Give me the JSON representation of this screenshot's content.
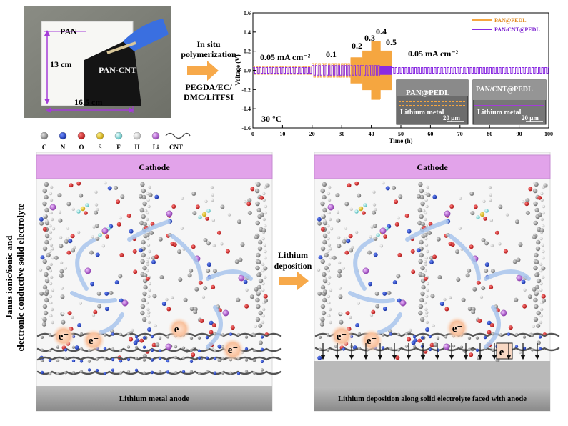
{
  "photo": {
    "pan": "PAN",
    "pan_cnt": "PAN-CNT",
    "height": "13 cm",
    "width": "16.5 cm"
  },
  "process": {
    "line1": "In situ",
    "line2": "polymerization",
    "r1": "PEGDA/EC/",
    "r2": "DMC/LiTFSI"
  },
  "chart_data": {
    "type": "line",
    "xlabel": "Time (h)",
    "ylabel": "Voltage (V)",
    "xlim": [
      0,
      100
    ],
    "ylim": [
      -0.6,
      0.6
    ],
    "x_ticks": [
      "0",
      "10",
      "20",
      "30",
      "40",
      "50",
      "60",
      "70",
      "80",
      "90",
      "100"
    ],
    "y_ticks": [
      "0.6",
      "0.4",
      "0.2",
      "0.0",
      "-0.2",
      "-0.4",
      "-0.6"
    ],
    "legend": [
      "PAN@PEDL",
      "PAN/CNT@PEDL"
    ],
    "series_colors": [
      "#f5a640",
      "#8a2be2"
    ],
    "annotations": {
      "d1": "0.05 mA cm⁻²",
      "d2": "0.1",
      "d3": "0.2",
      "d4": "0.3",
      "d5": "0.4",
      "d6": "0.5",
      "d7": "0.05 mA cm⁻²",
      "temp": "30 °C"
    },
    "segments": [
      {
        "current": 0.05,
        "x": [
          0,
          20
        ],
        "amp_pan": 0.04,
        "amp_cnt": 0.03
      },
      {
        "current": 0.1,
        "x": [
          20,
          33
        ],
        "amp_pan": 0.07,
        "amp_cnt": 0.05
      },
      {
        "current": 0.2,
        "x": [
          33,
          37
        ],
        "amp_pan": 0.13,
        "amp_cnt": 0.05
      },
      {
        "current": 0.3,
        "x": [
          37,
          40
        ],
        "amp_pan": 0.2,
        "amp_cnt": 0.05
      },
      {
        "current": 0.4,
        "x": [
          40,
          43
        ],
        "amp_pan": 0.3,
        "amp_cnt": 0.05
      },
      {
        "current": 0.5,
        "x": [
          43,
          47
        ],
        "amp_pan": 0.2,
        "amp_cnt": 0.04
      },
      {
        "current": 0.05,
        "x": [
          47,
          100
        ],
        "amp_pan": 0,
        "amp_cnt": 0.03
      }
    ],
    "inset1": {
      "title": "PAN@PEDL",
      "label": "Lithium metal",
      "scale": "20 μm"
    },
    "inset2": {
      "title": "PAN/CNT@PEDL",
      "label": "Lithium metal",
      "scale": "20 μm"
    }
  },
  "legend": {
    "items": [
      "C",
      "N",
      "O",
      "S",
      "F",
      "H",
      "Li",
      "CNT"
    ],
    "colors": [
      "#8f8f8f",
      "#1f3fbf",
      "#d01818",
      "#e8c020",
      "#9be6e6",
      "#ececec",
      "#c070d8"
    ]
  },
  "vlabel": {
    "line1": "Janus ionic/ionic and",
    "line2": "electronic conductive solid electrolyte"
  },
  "left": {
    "cathode": "Cathode",
    "anode": "Lithium metal anode"
  },
  "right": {
    "cathode": "Cathode",
    "anode": "Lithium deposition along solid electrolyte faced  with anode"
  },
  "middle": {
    "line1": "Lithium",
    "line2": "deposition"
  },
  "electron": "e⁻"
}
